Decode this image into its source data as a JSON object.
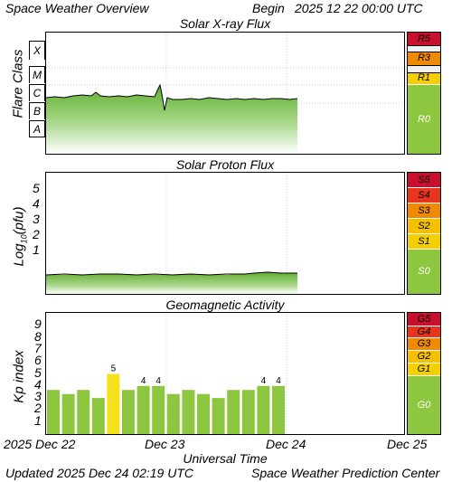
{
  "header": {
    "title": "Space Weather Overview",
    "begin_label": "Begin",
    "begin_value": "2025 12 22 00:00 UTC"
  },
  "footer": {
    "updated_label": "Updated",
    "updated_value": "2025 Dec 24 02:19 UTC",
    "credit": "Space Weather Prediction Center"
  },
  "xaxis": {
    "label": "Universal Time",
    "ticks": [
      "2025 Dec 22",
      "Dec 23",
      "Dec 24",
      "Dec 25"
    ]
  },
  "xray": {
    "title": "Solar X-ray Flux",
    "ylabel": "Flare Class",
    "classes": [
      "X",
      "M",
      "C",
      "B",
      "A"
    ],
    "scale": [
      {
        "label": "R5",
        "color": "#c8102e"
      },
      {
        "label": "R3",
        "color": "#f08a00"
      },
      {
        "label": "R1",
        "color": "#f5d000"
      },
      {
        "label": "R0",
        "color": "#8dc63f"
      }
    ]
  },
  "proton": {
    "title": "Solar Proton Flux",
    "ylabel": "Log10(pfu)",
    "ticks": [
      "5",
      "4",
      "3",
      "2",
      "1"
    ],
    "scale": [
      {
        "label": "S5",
        "color": "#c8102e"
      },
      {
        "label": "S4",
        "color": "#e8341c"
      },
      {
        "label": "S3",
        "color": "#f08a00"
      },
      {
        "label": "S2",
        "color": "#f5c000"
      },
      {
        "label": "S1",
        "color": "#f5d000"
      },
      {
        "label": "S0",
        "color": "#8dc63f"
      }
    ]
  },
  "geomag": {
    "title": "Geomagnetic Activity",
    "ylabel": "Kp index",
    "ticks": [
      "9",
      "8",
      "7",
      "6",
      "5",
      "4",
      "3",
      "2",
      "1"
    ],
    "scale": [
      {
        "label": "G5",
        "color": "#c8102e"
      },
      {
        "label": "G4",
        "color": "#e8341c"
      },
      {
        "label": "G3",
        "color": "#f08a00"
      },
      {
        "label": "G2",
        "color": "#f5c000"
      },
      {
        "label": "G1",
        "color": "#f5d000"
      },
      {
        "label": "G0",
        "color": "#8dc63f"
      }
    ],
    "kp_values": [
      3.67,
      3.33,
      3.67,
      3.0,
      5.0,
      3.67,
      4.0,
      4.0,
      3.33,
      3.67,
      3.33,
      3.0,
      3.67,
      3.67,
      4.0,
      4.0
    ],
    "bar_labels": [
      "",
      "",
      "",
      "",
      "5",
      "",
      "4",
      "4",
      "",
      "",
      "",
      "",
      "",
      "",
      "4",
      "4"
    ],
    "colors": {
      "quiet": "#8dc63f",
      "active": "#f5e01c"
    }
  }
}
